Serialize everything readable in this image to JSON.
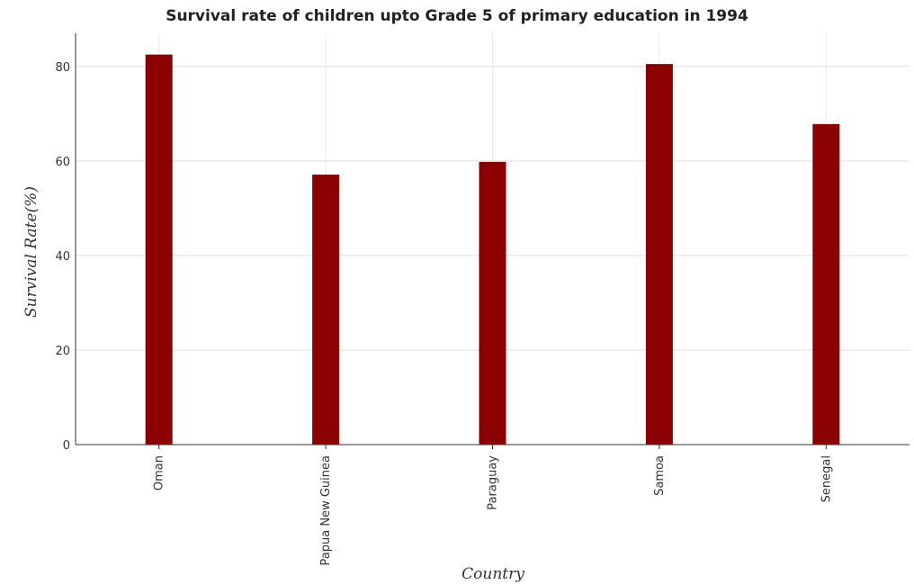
{
  "chart_data": {
    "type": "bar",
    "title": "Survival rate of children upto Grade 5 of primary education in 1994",
    "xlabel": "Country",
    "ylabel": "Survival Rate(%)",
    "categories": [
      "Oman",
      "Papua New Guinea",
      "Paraguay",
      "Samoa",
      "Senegal"
    ],
    "values": [
      82.5,
      57.1,
      59.8,
      80.5,
      67.8
    ],
    "ylim": [
      0,
      87
    ],
    "yticks": [
      0,
      20,
      40,
      60,
      80
    ],
    "grid": true,
    "bar_color": "#8b0000",
    "legend": "none"
  }
}
